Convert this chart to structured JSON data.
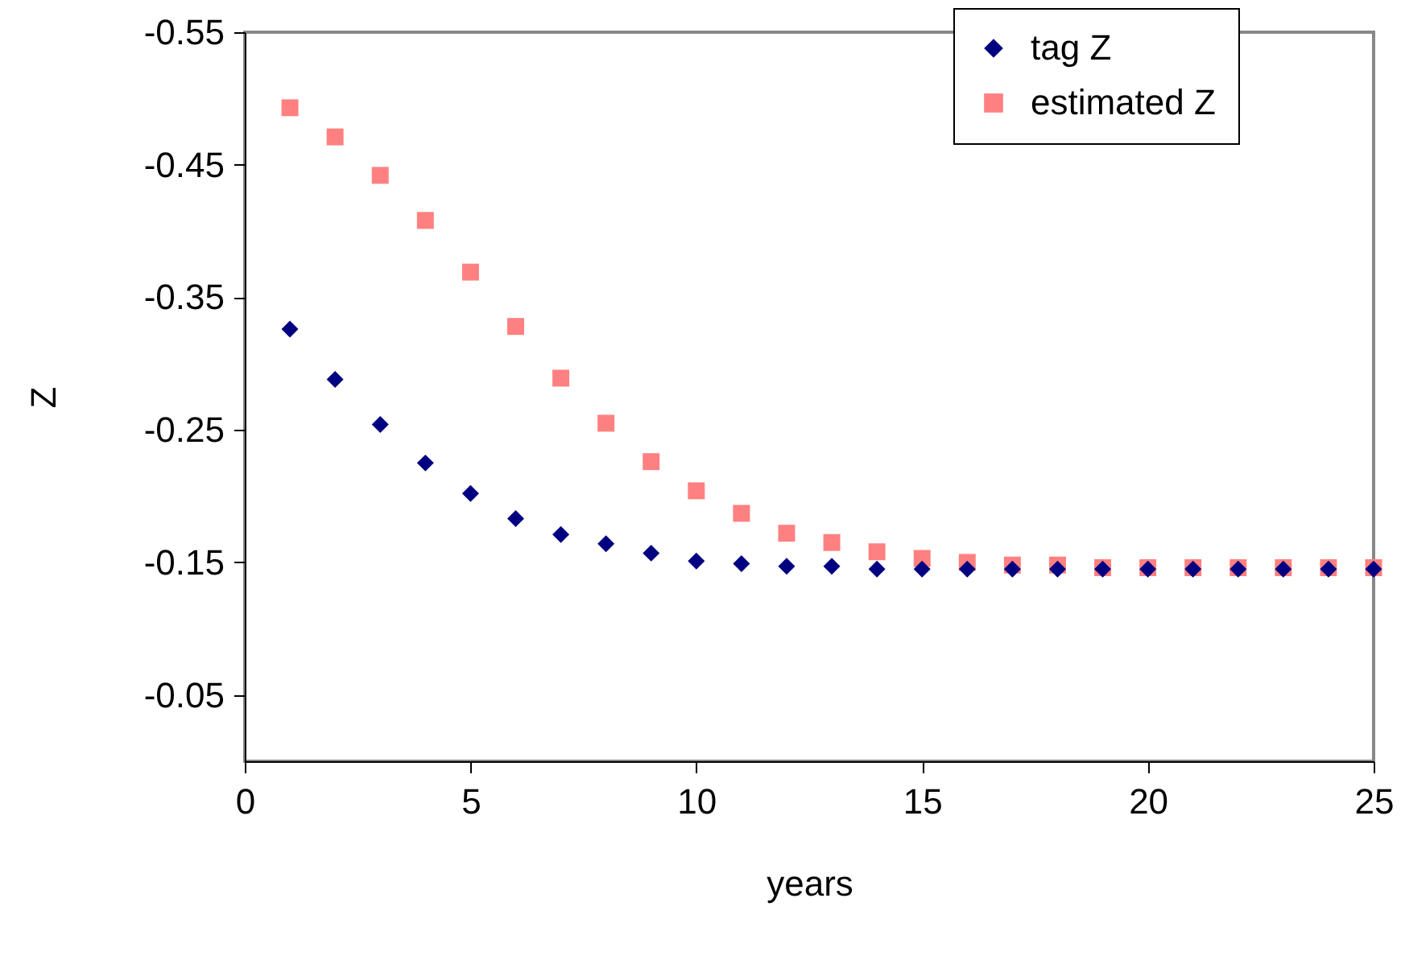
{
  "chart_data": {
    "type": "scatter",
    "xlabel": "years",
    "ylabel": "Z",
    "x": [
      1,
      2,
      3,
      4,
      5,
      6,
      7,
      8,
      9,
      10,
      11,
      12,
      13,
      14,
      15,
      16,
      17,
      18,
      19,
      20,
      21,
      22,
      23,
      24,
      25
    ],
    "xlim": [
      0,
      25
    ],
    "xticks": [
      0,
      5,
      10,
      15,
      20,
      25
    ],
    "ylim": [
      0,
      -0.55
    ],
    "yticks": [
      {
        "value": -0.55,
        "label": "-0.55"
      },
      {
        "value": -0.45,
        "label": "-0.45"
      },
      {
        "value": -0.35,
        "label": "-0.35"
      },
      {
        "value": -0.25,
        "label": "-0.25"
      },
      {
        "value": -0.15,
        "label": "-0.15"
      },
      {
        "value": -0.05,
        "label": "-0.05"
      }
    ],
    "grid": false,
    "legend": "top right",
    "series": [
      {
        "name": "tag Z",
        "color": "#000080",
        "marker": "diamond",
        "values": [
          -0.326,
          -0.288,
          -0.254,
          -0.225,
          -0.202,
          -0.183,
          -0.171,
          -0.164,
          -0.157,
          -0.151,
          -0.149,
          -0.147,
          -0.147,
          -0.145,
          -0.145,
          -0.145,
          -0.145,
          -0.145,
          -0.145,
          -0.145,
          -0.145,
          -0.145,
          -0.145,
          -0.145,
          -0.145
        ]
      },
      {
        "name": "estimated Z",
        "color": "#ff8080",
        "marker": "square",
        "values": [
          -0.493,
          -0.471,
          -0.442,
          -0.408,
          -0.369,
          -0.328,
          -0.289,
          -0.255,
          -0.226,
          -0.204,
          -0.187,
          -0.172,
          -0.165,
          -0.158,
          -0.153,
          -0.15,
          -0.148,
          -0.148,
          -0.146,
          -0.146,
          -0.146,
          -0.146,
          -0.146,
          -0.146,
          -0.146
        ]
      }
    ]
  }
}
